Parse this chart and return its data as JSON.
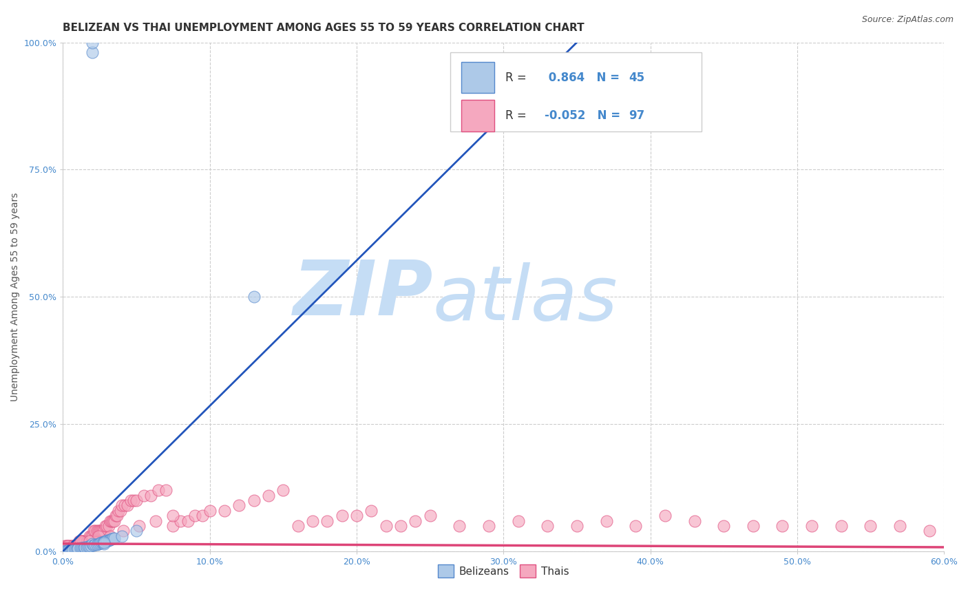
{
  "title": "BELIZEAN VS THAI UNEMPLOYMENT AMONG AGES 55 TO 59 YEARS CORRELATION CHART",
  "source": "Source: ZipAtlas.com",
  "ylabel": "Unemployment Among Ages 55 to 59 years",
  "xlim": [
    0.0,
    0.6
  ],
  "ylim": [
    0.0,
    1.0
  ],
  "xticks": [
    0.0,
    0.1,
    0.2,
    0.3,
    0.4,
    0.5,
    0.6
  ],
  "xtick_labels": [
    "0.0%",
    "10.0%",
    "20.0%",
    "30.0%",
    "40.0%",
    "50.0%",
    "60.0%"
  ],
  "yticks": [
    0.0,
    0.25,
    0.5,
    0.75,
    1.0
  ],
  "ytick_labels": [
    "0.0%",
    "25.0%",
    "50.0%",
    "75.0%",
    "100.0%"
  ],
  "belizean_R": 0.864,
  "belizean_N": 45,
  "thai_R": -0.052,
  "thai_N": 97,
  "belizean_color": "#adc9e8",
  "thai_color": "#f5a8bf",
  "belizean_edge_color": "#5588cc",
  "thai_edge_color": "#e05080",
  "belizean_line_color": "#2255bb",
  "thai_line_color": "#dd4477",
  "watermark_zip": "ZIP",
  "watermark_atlas": "atlas",
  "watermark_color": "#c5ddf5",
  "background_color": "#ffffff",
  "grid_color": "#cccccc",
  "title_color": "#333333",
  "axis_label_color": "#555555",
  "tick_color": "#4488cc",
  "legend_label_color": "#333333",
  "legend_n_color": "#4488cc",
  "title_fontsize": 11,
  "axis_label_fontsize": 10,
  "tick_fontsize": 9,
  "legend_fontsize": 12,
  "source_fontsize": 9,
  "belize_x": [
    0.0,
    0.001,
    0.002,
    0.003,
    0.004,
    0.005,
    0.006,
    0.007,
    0.008,
    0.009,
    0.01,
    0.01,
    0.012,
    0.013,
    0.014,
    0.015,
    0.015,
    0.016,
    0.017,
    0.018,
    0.019,
    0.02,
    0.02,
    0.02,
    0.021,
    0.022,
    0.023,
    0.024,
    0.025,
    0.026,
    0.027,
    0.028,
    0.029,
    0.03,
    0.03,
    0.031,
    0.032,
    0.033,
    0.034,
    0.035,
    0.04,
    0.05,
    0.028,
    0.13,
    0.028
  ],
  "belize_y": [
    0.0,
    0.0,
    0.001,
    0.001,
    0.002,
    0.002,
    0.003,
    0.003,
    0.004,
    0.004,
    0.005,
    0.005,
    0.006,
    0.006,
    0.007,
    0.007,
    0.008,
    0.008,
    0.009,
    0.009,
    0.01,
    0.98,
    1.0,
    0.015,
    0.012,
    0.013,
    0.014,
    0.015,
    0.016,
    0.017,
    0.018,
    0.019,
    0.02,
    0.02,
    0.021,
    0.022,
    0.023,
    0.024,
    0.025,
    0.026,
    0.03,
    0.04,
    0.015,
    0.5,
    0.018
  ],
  "thai_x": [
    0.001,
    0.002,
    0.003,
    0.004,
    0.005,
    0.006,
    0.007,
    0.008,
    0.009,
    0.01,
    0.011,
    0.012,
    0.013,
    0.014,
    0.015,
    0.016,
    0.017,
    0.018,
    0.019,
    0.02,
    0.021,
    0.022,
    0.023,
    0.024,
    0.025,
    0.026,
    0.027,
    0.028,
    0.029,
    0.03,
    0.031,
    0.032,
    0.033,
    0.034,
    0.035,
    0.036,
    0.037,
    0.038,
    0.039,
    0.04,
    0.042,
    0.044,
    0.046,
    0.048,
    0.05,
    0.055,
    0.06,
    0.065,
    0.07,
    0.075,
    0.08,
    0.085,
    0.09,
    0.095,
    0.1,
    0.11,
    0.12,
    0.13,
    0.14,
    0.15,
    0.16,
    0.17,
    0.18,
    0.19,
    0.2,
    0.21,
    0.22,
    0.23,
    0.24,
    0.25,
    0.27,
    0.29,
    0.31,
    0.33,
    0.35,
    0.37,
    0.39,
    0.41,
    0.43,
    0.45,
    0.47,
    0.49,
    0.51,
    0.53,
    0.55,
    0.57,
    0.59,
    0.003,
    0.007,
    0.012,
    0.018,
    0.024,
    0.032,
    0.041,
    0.052,
    0.063,
    0.075
  ],
  "thai_y": [
    0.01,
    0.01,
    0.01,
    0.01,
    0.01,
    0.01,
    0.01,
    0.01,
    0.01,
    0.01,
    0.02,
    0.02,
    0.02,
    0.02,
    0.02,
    0.02,
    0.02,
    0.03,
    0.03,
    0.03,
    0.04,
    0.04,
    0.04,
    0.04,
    0.04,
    0.04,
    0.04,
    0.04,
    0.05,
    0.05,
    0.05,
    0.06,
    0.06,
    0.06,
    0.06,
    0.07,
    0.07,
    0.08,
    0.08,
    0.09,
    0.09,
    0.09,
    0.1,
    0.1,
    0.1,
    0.11,
    0.11,
    0.12,
    0.12,
    0.05,
    0.06,
    0.06,
    0.07,
    0.07,
    0.08,
    0.08,
    0.09,
    0.1,
    0.11,
    0.12,
    0.05,
    0.06,
    0.06,
    0.07,
    0.07,
    0.08,
    0.05,
    0.05,
    0.06,
    0.07,
    0.05,
    0.05,
    0.06,
    0.05,
    0.05,
    0.06,
    0.05,
    0.07,
    0.06,
    0.05,
    0.05,
    0.05,
    0.05,
    0.05,
    0.05,
    0.05,
    0.04,
    0.01,
    0.01,
    0.02,
    0.02,
    0.03,
    0.03,
    0.04,
    0.05,
    0.06,
    0.07
  ]
}
